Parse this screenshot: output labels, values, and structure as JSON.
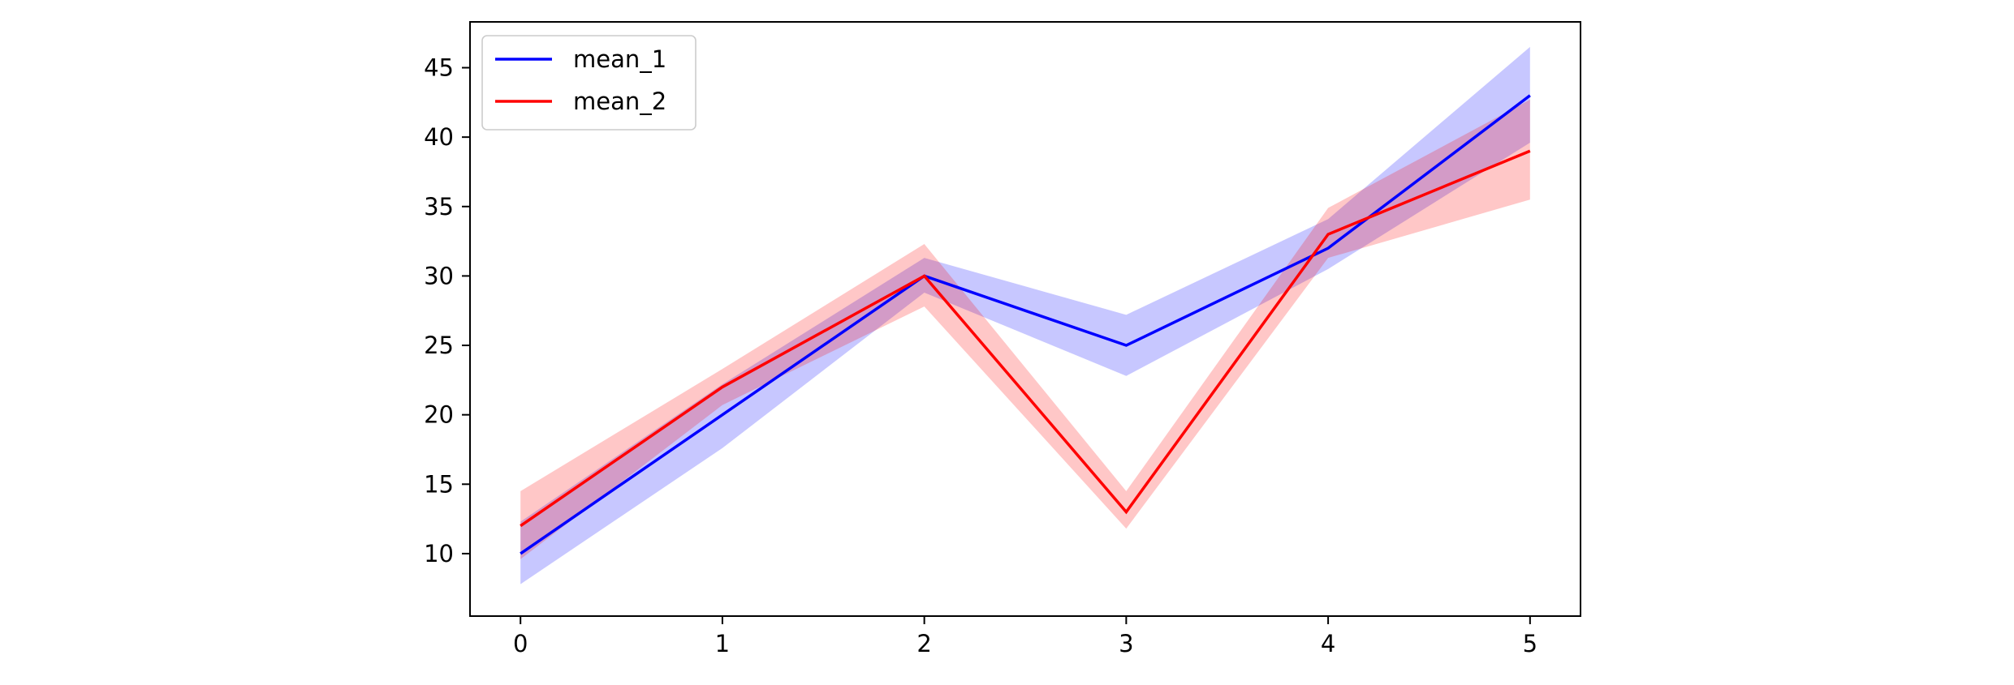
{
  "chart_data": {
    "type": "line",
    "x": [
      0,
      1,
      2,
      3,
      4,
      5
    ],
    "xlim": [
      -0.25,
      5.25
    ],
    "ylim": [
      5.5,
      48.3
    ],
    "xticks": [
      0,
      1,
      2,
      3,
      4,
      5
    ],
    "yticks": [
      10,
      15,
      20,
      25,
      30,
      35,
      40,
      45
    ],
    "xtick_labels": [
      "0",
      "1",
      "2",
      "3",
      "4",
      "5"
    ],
    "ytick_labels": [
      "10",
      "15",
      "20",
      "25",
      "30",
      "35",
      "40",
      "45"
    ],
    "grid": false,
    "legend_position": "top-left",
    "series": [
      {
        "name": "mean_1",
        "color": "#0000ff",
        "band_color": "#0000ff",
        "values": [
          10,
          20,
          30,
          25,
          32,
          43
        ],
        "lower": [
          7.8,
          17.6,
          28.8,
          22.8,
          30.5,
          39.6
        ],
        "upper": [
          12.3,
          22.2,
          31.3,
          27.2,
          34.1,
          46.5
        ]
      },
      {
        "name": "mean_2",
        "color": "#ff0000",
        "band_color": "#ff0000",
        "values": [
          12,
          22,
          30,
          13,
          33,
          39
        ],
        "lower": [
          9.6,
          20.7,
          27.8,
          11.8,
          31.3,
          35.5
        ],
        "upper": [
          14.5,
          23.3,
          32.3,
          14.5,
          34.9,
          42.7
        ]
      }
    ]
  }
}
